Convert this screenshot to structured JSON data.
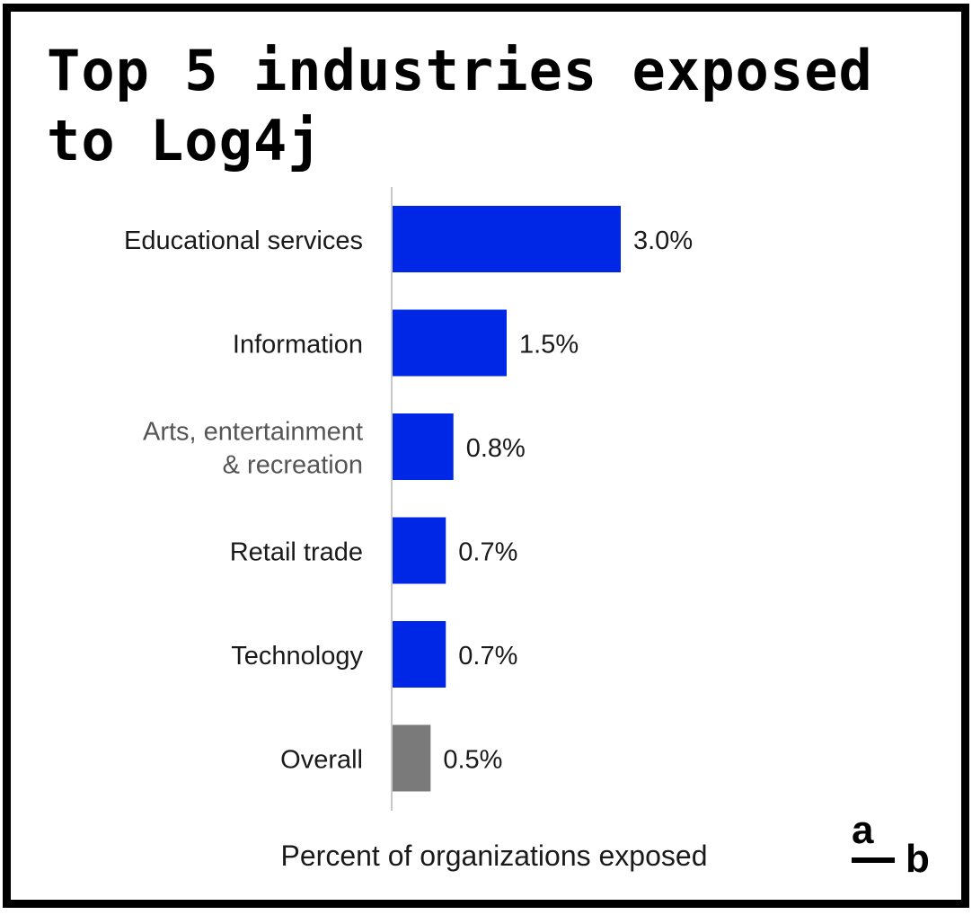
{
  "title_lines": [
    "Top 5 industries exposed",
    "to Log4j"
  ],
  "chart_data": {
    "type": "bar",
    "orientation": "horizontal",
    "title": "Top 5 industries exposed to Log4j",
    "xlabel": "Percent of organizations exposed",
    "ylabel": "",
    "categories": [
      [
        "Educational services"
      ],
      [
        "Information"
      ],
      [
        "Arts, entertainment",
        "& recreation"
      ],
      [
        "Retail trade"
      ],
      [
        "Technology"
      ],
      [
        "Overall"
      ]
    ],
    "values": [
      3.0,
      1.5,
      0.8,
      0.7,
      0.7,
      0.5
    ],
    "value_labels": [
      "3.0%",
      "1.5%",
      "0.8%",
      "0.7%",
      "0.7%",
      "0.5%"
    ],
    "bar_colors": [
      "#0026e6",
      "#0026e6",
      "#0026e6",
      "#0026e6",
      "#0026e6",
      "#7a7a7a"
    ],
    "label_muted": [
      false,
      false,
      true,
      false,
      false,
      false
    ],
    "xlim": [
      0,
      3.0
    ]
  },
  "logo": {
    "a": "a",
    "b": "b"
  }
}
